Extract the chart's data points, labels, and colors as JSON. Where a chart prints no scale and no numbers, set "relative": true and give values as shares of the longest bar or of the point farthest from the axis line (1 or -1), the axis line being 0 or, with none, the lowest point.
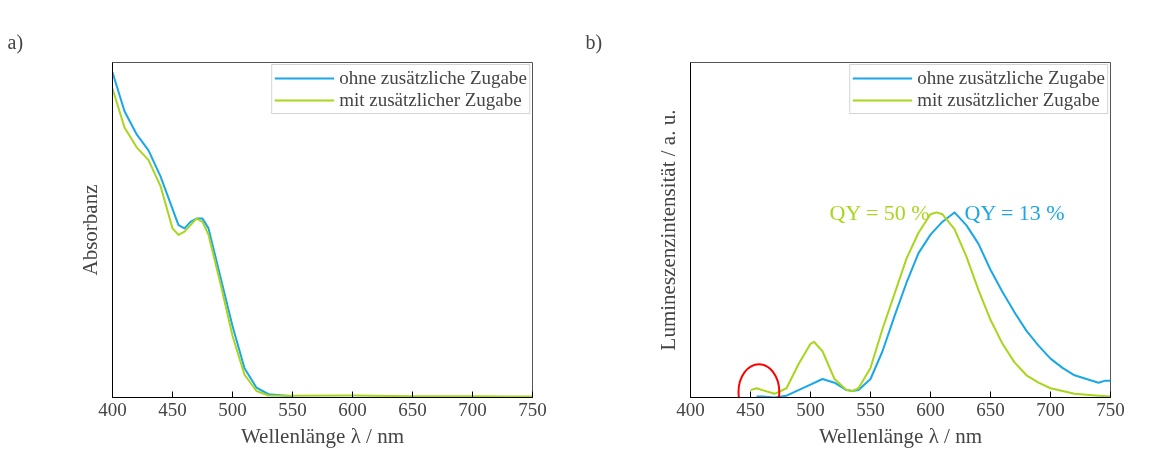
{
  "chart_data": [
    {
      "type": "line",
      "title": "a)",
      "xlabel": "Wellenlänge λ / nm",
      "ylabel": "Absorbanz",
      "relative": true,
      "xlim": [
        400,
        750
      ],
      "xticks": [
        400,
        450,
        500,
        550,
        600,
        650,
        700,
        750
      ],
      "legend": "top right",
      "grid": false,
      "x": [
        400,
        410,
        420,
        430,
        440,
        450,
        455,
        460,
        465,
        470,
        475,
        480,
        490,
        500,
        510,
        520,
        530,
        550,
        600,
        650,
        700,
        750
      ],
      "series": [
        {
          "name": "ohne zusätzliche Zugabe",
          "color": "#1aa7e8",
          "values": [
            1.0,
            0.88,
            0.81,
            0.76,
            0.68,
            0.58,
            0.53,
            0.52,
            0.54,
            0.55,
            0.55,
            0.52,
            0.37,
            0.22,
            0.09,
            0.03,
            0.01,
            0.004,
            null,
            null,
            null,
            null
          ]
        },
        {
          "name": "mit zusätzlicher Zugabe",
          "color": "#a8d61c",
          "values": [
            0.95,
            0.83,
            0.77,
            0.73,
            0.65,
            0.52,
            0.5,
            0.51,
            0.53,
            0.55,
            0.54,
            0.5,
            0.35,
            0.19,
            0.07,
            0.02,
            0.006,
            0.005,
            0.006,
            0.004,
            0.004,
            0.003
          ]
        }
      ]
    },
    {
      "type": "line",
      "title": "b)",
      "xlabel": "Wellenlänge λ / nm",
      "ylabel": "Lumineszenzintensität / a. u.",
      "relative": true,
      "xlim": [
        400,
        750
      ],
      "xticks": [
        400,
        450,
        500,
        550,
        600,
        650,
        700,
        750
      ],
      "legend": "top right",
      "grid": false,
      "series": [
        {
          "name": "ohne zusätzliche Zugabe",
          "color": "#1aa7e8",
          "x": [
            455,
            460,
            470,
            480,
            490,
            500,
            510,
            520,
            530,
            535,
            540,
            550,
            560,
            570,
            580,
            590,
            600,
            610,
            620,
            630,
            640,
            650,
            660,
            670,
            680,
            690,
            700,
            710,
            720,
            730,
            740,
            745,
            750
          ],
          "values": [
            0.005,
            0.005,
            0.0,
            0.01,
            0.04,
            0.07,
            0.1,
            0.08,
            0.04,
            0.035,
            0.04,
            0.1,
            0.25,
            0.44,
            0.62,
            0.78,
            0.88,
            0.95,
            1.0,
            0.93,
            0.83,
            0.69,
            0.57,
            0.46,
            0.36,
            0.28,
            0.21,
            0.16,
            0.12,
            0.1,
            0.08,
            0.09,
            0.09
          ]
        },
        {
          "name": "mit zusätzlicher Zugabe",
          "color": "#a8d61c",
          "x": [
            450,
            455,
            460,
            470,
            480,
            490,
            500,
            503,
            510,
            520,
            530,
            535,
            540,
            550,
            560,
            570,
            580,
            590,
            600,
            605,
            610,
            620,
            630,
            640,
            650,
            660,
            670,
            680,
            690,
            700,
            720,
            740,
            750
          ],
          "values": [
            0.04,
            0.05,
            0.04,
            0.02,
            0.05,
            0.18,
            0.29,
            0.3,
            0.25,
            0.1,
            0.04,
            0.035,
            0.05,
            0.16,
            0.37,
            0.56,
            0.75,
            0.89,
            0.99,
            1.0,
            0.99,
            0.91,
            0.76,
            0.58,
            0.42,
            0.29,
            0.19,
            0.12,
            0.08,
            0.05,
            0.02,
            0.01,
            0.005
          ]
        }
      ],
      "annotations": [
        {
          "text": "QY = 50 %",
          "x": 605,
          "y": 1.0
        },
        {
          "text": "QY = 13 %",
          "x": 620,
          "y": 1.0
        }
      ]
    }
  ]
}
